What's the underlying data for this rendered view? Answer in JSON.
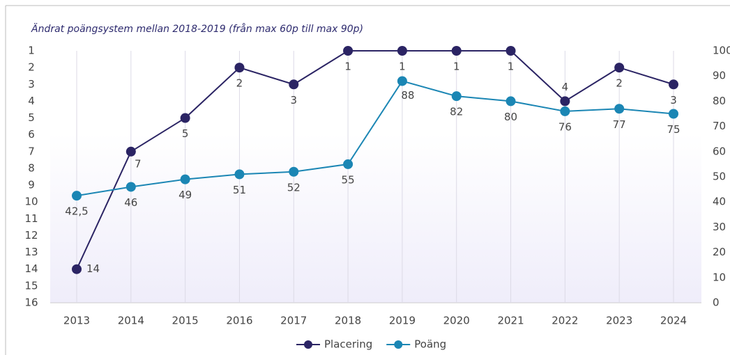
{
  "chart_data": {
    "type": "line",
    "title": "Ändrat poängsystem mellan 2018-2019 (från max 60p till max 90p)",
    "categories": [
      "2013",
      "2014",
      "2015",
      "2016",
      "2017",
      "2018",
      "2019",
      "2020",
      "2021",
      "2022",
      "2023",
      "2024"
    ],
    "series": [
      {
        "name": "Placering",
        "color": "#2b2464",
        "values": [
          14,
          7,
          5,
          2,
          3,
          1,
          1,
          1,
          1,
          4,
          2,
          3
        ]
      },
      {
        "name": "Poäng",
        "color": "#1b86b4",
        "axis": "y2",
        "values": [
          42.5,
          46,
          49,
          51,
          52,
          55,
          88,
          82,
          80,
          76,
          77,
          75
        ],
        "value_labels": [
          "42,5",
          "46",
          "49",
          "51",
          "52",
          "55",
          "88",
          "82",
          "80",
          "76",
          "77",
          "75"
        ]
      }
    ],
    "ylim": [
      16,
      1
    ],
    "yticks": [
      1,
      2,
      3,
      4,
      5,
      6,
      7,
      8,
      9,
      10,
      11,
      12,
      13,
      14,
      15,
      16
    ],
    "y2lim": [
      0,
      100
    ],
    "y2ticks": [
      0,
      10,
      20,
      30,
      40,
      50,
      60,
      70,
      80,
      90,
      100
    ],
    "legend": "bottom"
  }
}
